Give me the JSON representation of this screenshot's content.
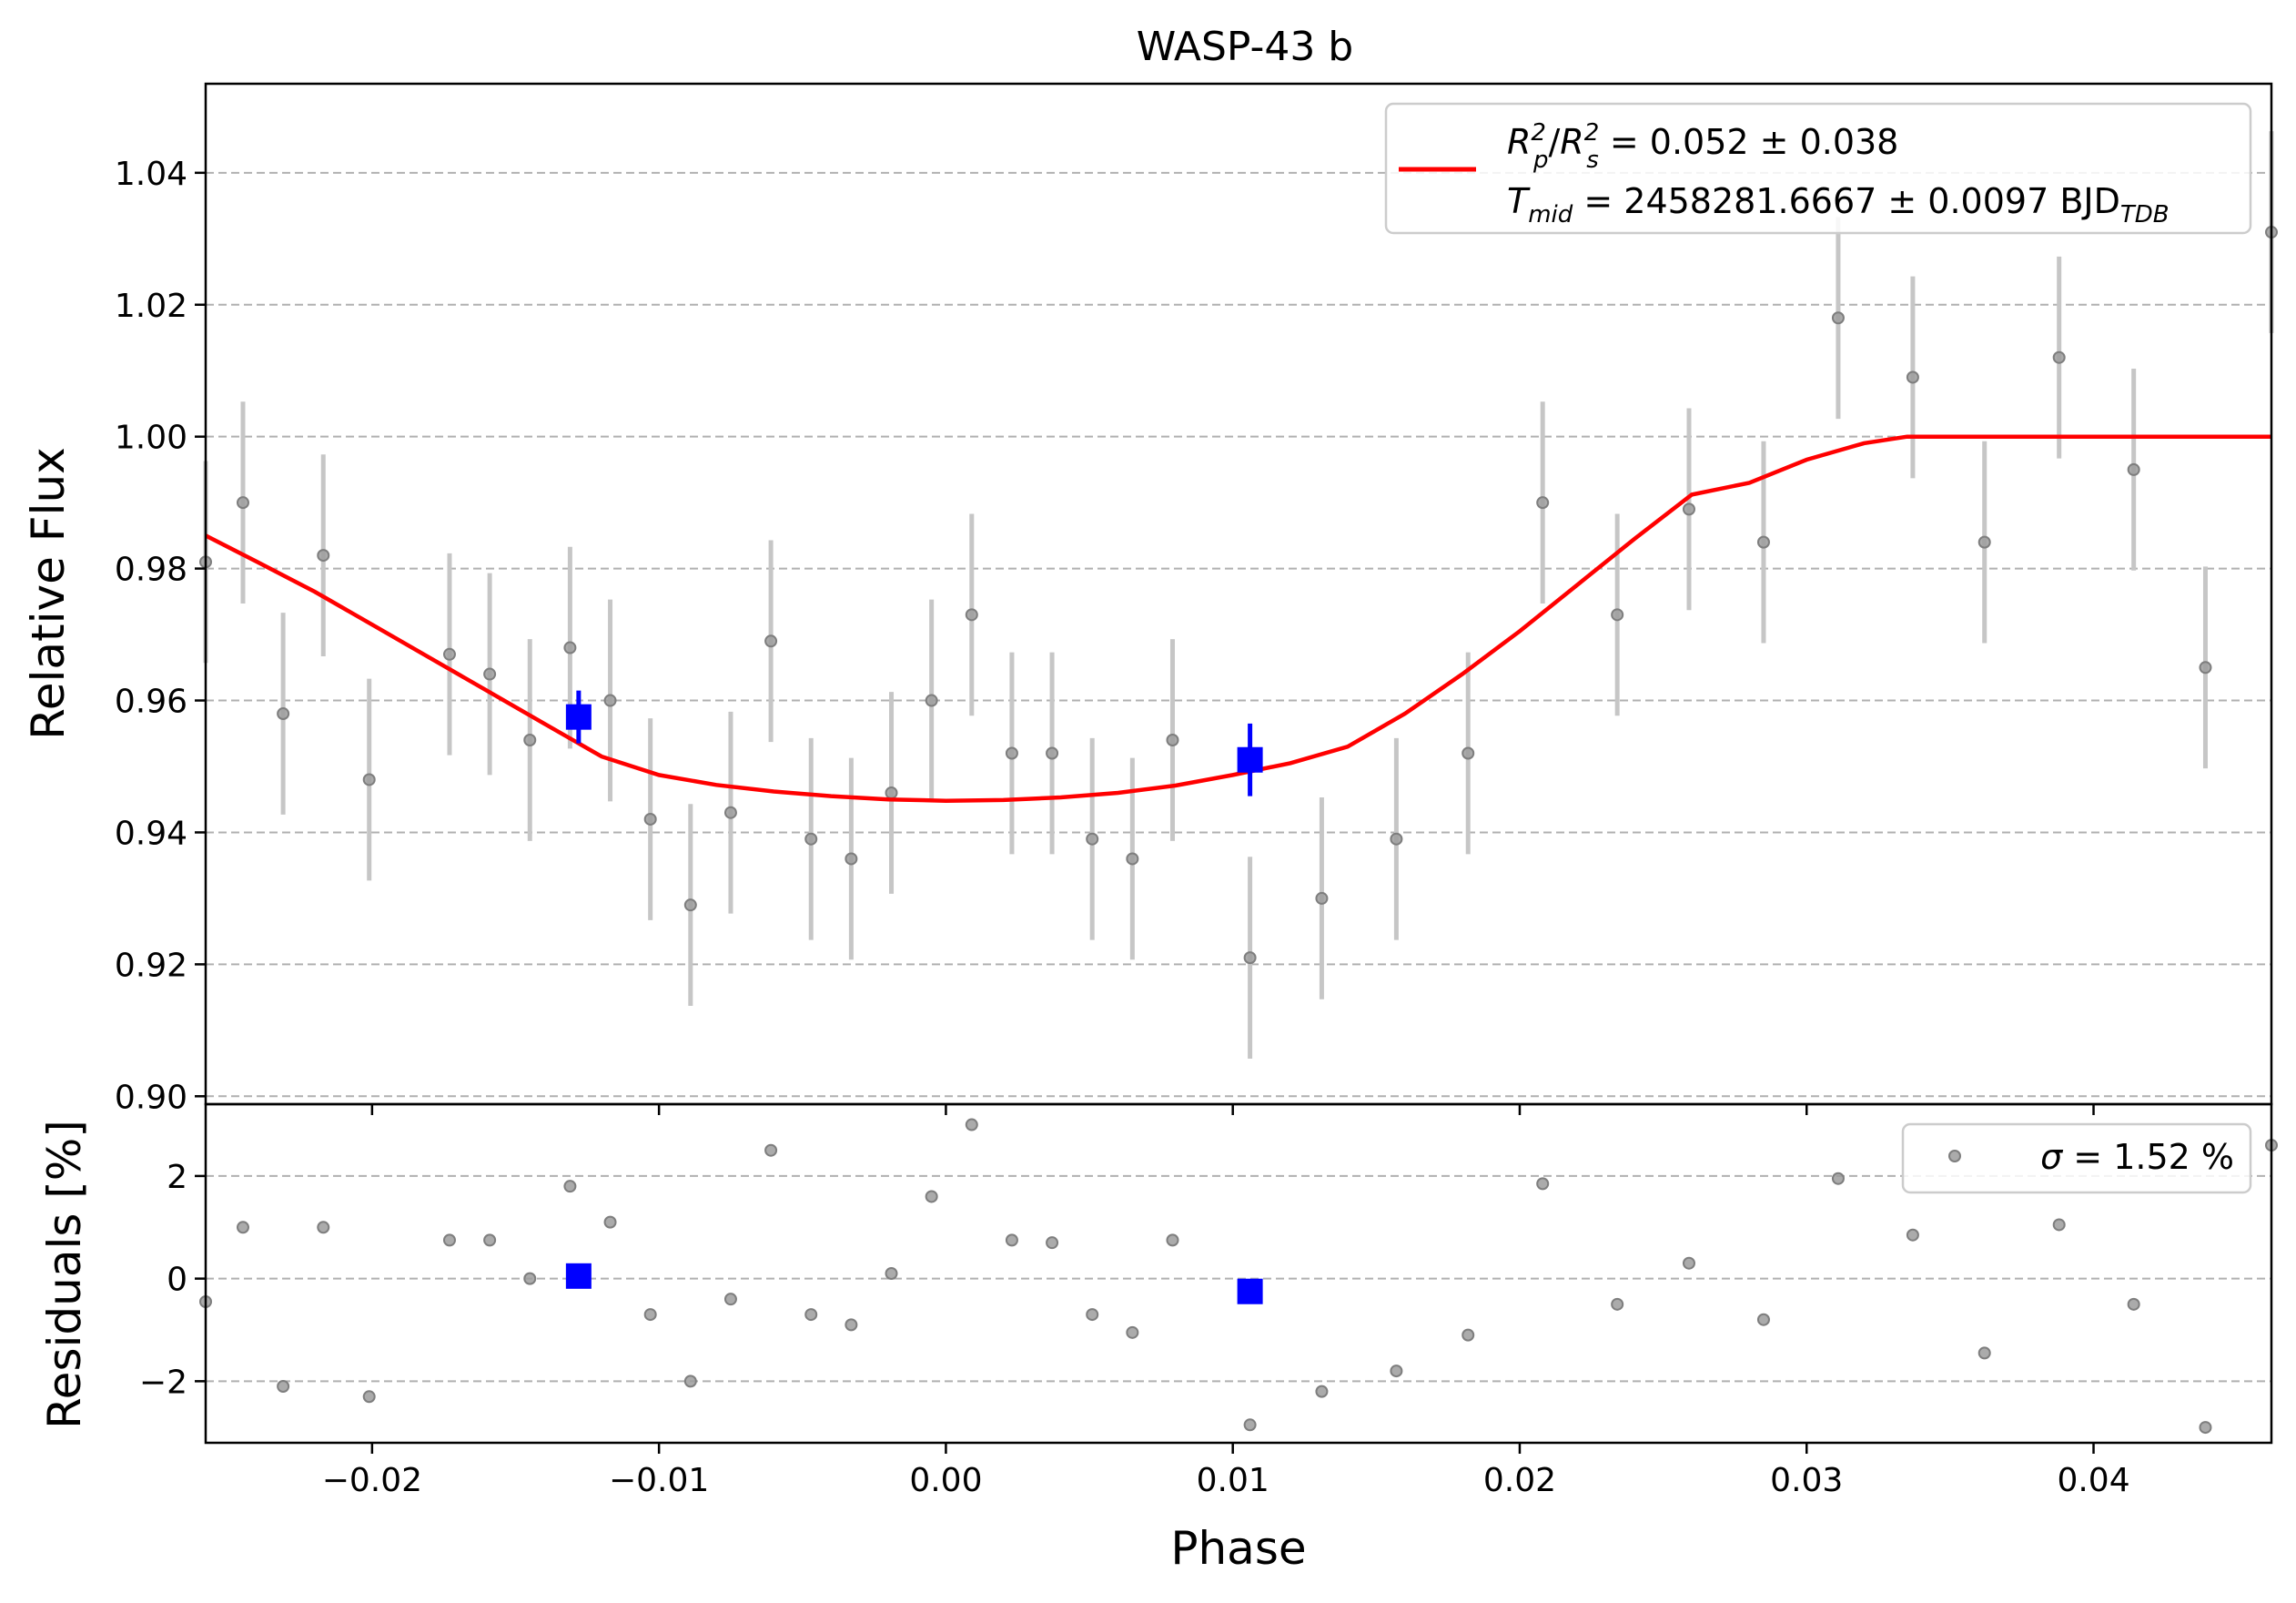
{
  "chart_data": [
    {
      "type": "scatter",
      "panel": "lightcurve",
      "title": "WASP-43 b",
      "xlabel": "",
      "ylabel": "Relative Flux",
      "xlim": [
        -0.0258,
        0.0462
      ],
      "ylim": [
        0.8988,
        1.0535
      ],
      "y_ticks": [
        0.9,
        0.92,
        0.94,
        0.96,
        0.98,
        1.0,
        1.02,
        1.04
      ],
      "y_tick_labels": [
        "0.90",
        "0.92",
        "0.94",
        "0.96",
        "0.98",
        "1.00",
        "1.02",
        "1.04"
      ],
      "grid": "y dashed",
      "legend_placement": "top-right",
      "legend": {
        "line1": {
          "sym": "R",
          "sub1": "p",
          "sup1": "2",
          "sym2": "R",
          "sub2": "s",
          "sup2": "2",
          "text": " = 0.052 ± 0.038"
        },
        "line2": {
          "sym": "T",
          "sub": "mid",
          "text": " = 2458281.6667 ± 0.0097 BJD",
          "unit_sub": "TDB"
        },
        "line_color": "#ff0000"
      },
      "series": [
        {
          "role": "observations",
          "color": "#9c9c9c",
          "error": 0.0153,
          "points": [
            [
              -0.0258,
              0.981
            ],
            [
              -0.0245,
              0.99
            ],
            [
              -0.0231,
              0.958
            ],
            [
              -0.0217,
              0.982
            ],
            [
              -0.0201,
              0.948
            ],
            [
              -0.0173,
              0.967
            ],
            [
              -0.0159,
              0.964
            ],
            [
              -0.0145,
              0.954
            ],
            [
              -0.0131,
              0.968
            ],
            [
              -0.0117,
              0.96
            ],
            [
              -0.0103,
              0.942
            ],
            [
              -0.0089,
              0.929
            ],
            [
              -0.0075,
              0.943
            ],
            [
              -0.0061,
              0.969
            ],
            [
              -0.0047,
              0.939
            ],
            [
              -0.0033,
              0.936
            ],
            [
              -0.0019,
              0.946
            ],
            [
              -0.0005,
              0.96
            ],
            [
              0.0009,
              0.973
            ],
            [
              0.0023,
              0.952
            ],
            [
              0.0037,
              0.952
            ],
            [
              0.0051,
              0.939
            ],
            [
              0.0065,
              0.936
            ],
            [
              0.0079,
              0.954
            ],
            [
              0.0106,
              0.921
            ],
            [
              0.0131,
              0.93
            ],
            [
              0.0157,
              0.939
            ],
            [
              0.0182,
              0.952
            ],
            [
              0.0208,
              0.99
            ],
            [
              0.0234,
              0.973
            ],
            [
              0.0259,
              0.989
            ],
            [
              0.0285,
              0.984
            ],
            [
              0.0311,
              1.018
            ],
            [
              0.0337,
              1.009
            ],
            [
              0.0362,
              0.984
            ],
            [
              0.0388,
              1.012
            ],
            [
              0.0414,
              0.995
            ],
            [
              0.0439,
              0.965
            ],
            [
              0.0462,
              1.031
            ]
          ]
        },
        {
          "role": "binned",
          "color": "#0000ff",
          "points": [
            [
              -0.0128,
              0.9575,
              0.004
            ],
            [
              0.0106,
              0.951,
              0.0055
            ]
          ]
        },
        {
          "role": "model",
          "color": "#ff0000",
          "points": [
            [
              -0.0258,
              0.985
            ],
            [
              -0.024,
              0.981
            ],
            [
              -0.022,
              0.9765
            ],
            [
              -0.02,
              0.9715
            ],
            [
              -0.018,
              0.9665
            ],
            [
              -0.016,
              0.9615
            ],
            [
              -0.014,
              0.9565
            ],
            [
              -0.012,
              0.9515
            ],
            [
              -0.01,
              0.9487
            ],
            [
              -0.008,
              0.9472
            ],
            [
              -0.006,
              0.9462
            ],
            [
              -0.004,
              0.9455
            ],
            [
              -0.002,
              0.945
            ],
            [
              0.0,
              0.9448
            ],
            [
              0.002,
              0.9449
            ],
            [
              0.004,
              0.9453
            ],
            [
              0.006,
              0.946
            ],
            [
              0.008,
              0.9471
            ],
            [
              0.01,
              0.9487
            ],
            [
              0.012,
              0.9505
            ],
            [
              0.014,
              0.953
            ],
            [
              0.016,
              0.958
            ],
            [
              0.018,
              0.964
            ],
            [
              0.02,
              0.9705
            ],
            [
              0.022,
              0.9775
            ],
            [
              0.024,
              0.9845
            ],
            [
              0.026,
              0.9912
            ],
            [
              0.028,
              0.993
            ],
            [
              0.03,
              0.9965
            ],
            [
              0.032,
              0.999
            ],
            [
              0.0335,
              1.0
            ],
            [
              0.0462,
              1.0
            ]
          ]
        }
      ]
    },
    {
      "type": "scatter",
      "panel": "residuals",
      "xlabel": "Phase",
      "ylabel": "Residuals [%]",
      "xlim": [
        -0.0258,
        0.0462
      ],
      "ylim": [
        -3.2,
        3.4
      ],
      "x_ticks": [
        -0.02,
        -0.01,
        0.0,
        0.01,
        0.02,
        0.03,
        0.04
      ],
      "x_tick_labels": [
        "−0.02",
        "−0.01",
        "0.00",
        "0.01",
        "0.02",
        "0.03",
        "0.04"
      ],
      "y_ticks": [
        -2,
        0,
        2
      ],
      "y_tick_labels": [
        "−2",
        "0",
        "2"
      ],
      "grid": "y dashed",
      "legend_placement": "top-right",
      "legend": {
        "sym": "σ",
        "text": " = 1.52 %"
      },
      "series": [
        {
          "role": "residuals",
          "color": "#9c9c9c",
          "points": [
            [
              -0.0258,
              -0.45
            ],
            [
              -0.0245,
              1.0
            ],
            [
              -0.0231,
              -2.1
            ],
            [
              -0.0217,
              1.0
            ],
            [
              -0.0201,
              -2.3
            ],
            [
              -0.0173,
              0.75
            ],
            [
              -0.0159,
              0.75
            ],
            [
              -0.0145,
              0.0
            ],
            [
              -0.0131,
              1.8
            ],
            [
              -0.0117,
              1.1
            ],
            [
              -0.0103,
              -0.7
            ],
            [
              -0.0089,
              -2.0
            ],
            [
              -0.0075,
              -0.4
            ],
            [
              -0.0061,
              2.5
            ],
            [
              -0.0047,
              -0.7
            ],
            [
              -0.0033,
              -0.9
            ],
            [
              -0.0019,
              0.1
            ],
            [
              -0.0005,
              1.6
            ],
            [
              0.0009,
              3.0
            ],
            [
              0.0023,
              0.75
            ],
            [
              0.0037,
              0.7
            ],
            [
              0.0051,
              -0.7
            ],
            [
              0.0065,
              -1.05
            ],
            [
              0.0079,
              0.75
            ],
            [
              0.0106,
              -2.85
            ],
            [
              0.0131,
              -2.2
            ],
            [
              0.0157,
              -1.8
            ],
            [
              0.0182,
              -1.1
            ],
            [
              0.0208,
              1.85
            ],
            [
              0.0234,
              -0.5
            ],
            [
              0.0259,
              0.3
            ],
            [
              0.0285,
              -0.8
            ],
            [
              0.0311,
              1.95
            ],
            [
              0.0337,
              0.85
            ],
            [
              0.0362,
              -1.45
            ],
            [
              0.0388,
              1.05
            ],
            [
              0.0414,
              -0.5
            ],
            [
              0.0439,
              -2.9
            ],
            [
              0.0462,
              2.6
            ]
          ]
        },
        {
          "role": "binned",
          "color": "#0000ff",
          "points": [
            [
              -0.0128,
              0.05
            ],
            [
              0.0106,
              -0.25
            ]
          ]
        }
      ]
    }
  ]
}
